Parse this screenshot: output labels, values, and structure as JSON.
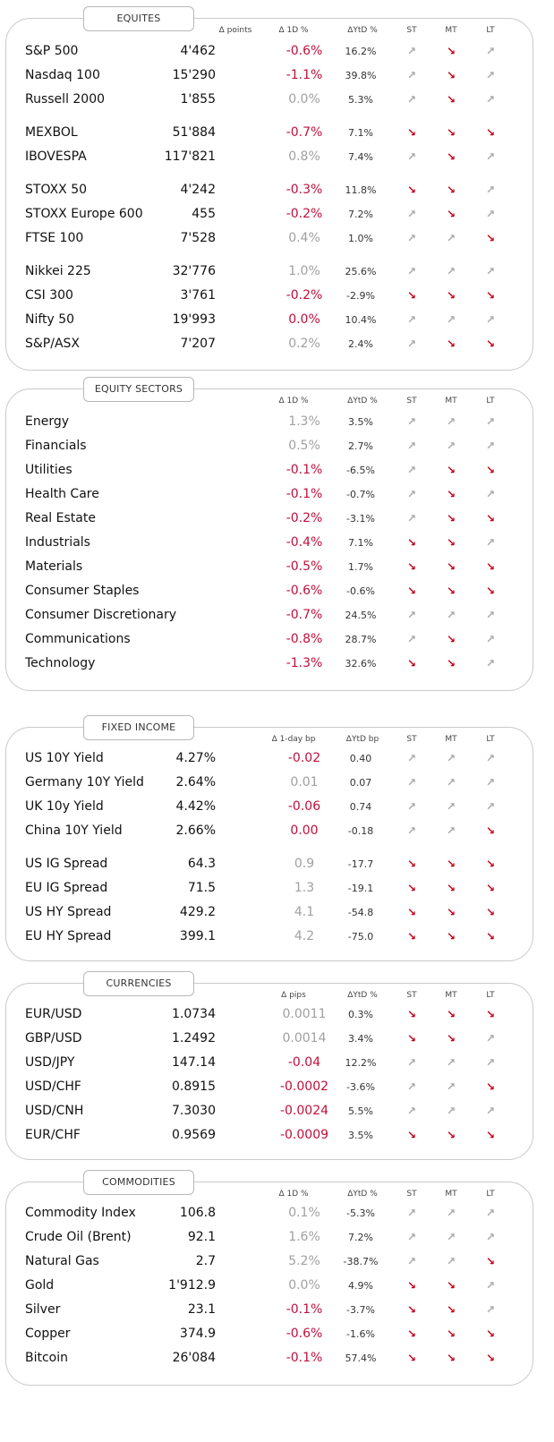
{
  "colors": {
    "negative": "#c0103a",
    "positive": "#a0a0a0",
    "arrow_up": "#a8a8a8",
    "arrow_down": "#c00018"
  },
  "icons": {
    "up": "↗",
    "down": "↘"
  },
  "sections": [
    {
      "id": "equities",
      "title": "EQUITES",
      "headers": {
        "chg": "Δ 1D %",
        "points": "Δ points",
        "ytd": "ΔYtD %",
        "st": "ST",
        "mt": "MT",
        "lt": "LT"
      },
      "rows": [
        {
          "name": "S&P 500",
          "level": "4'462",
          "chg": "-0.6%",
          "sign": "neg",
          "ytd": "16.2%",
          "st": "up",
          "mt": "down",
          "lt": "up"
        },
        {
          "name": "Nasdaq 100",
          "level": "15'290",
          "chg": "-1.1%",
          "sign": "neg",
          "ytd": "39.8%",
          "st": "up",
          "mt": "down",
          "lt": "up"
        },
        {
          "name": "Russell 2000",
          "level": "1'855",
          "chg": "0.0%",
          "sign": "pos",
          "ytd": "5.3%",
          "st": "up",
          "mt": "down",
          "lt": "up"
        },
        {
          "name": "MEXBOL",
          "level": "51'884",
          "chg": "-0.7%",
          "sign": "neg",
          "ytd": "7.1%",
          "st": "down",
          "mt": "down",
          "lt": "down"
        },
        {
          "name": "IBOVESPA",
          "level": "117'821",
          "chg": "0.8%",
          "sign": "pos",
          "ytd": "7.4%",
          "st": "up",
          "mt": "down",
          "lt": "up"
        },
        {
          "name": "STOXX 50",
          "level": "4'242",
          "chg": "-0.3%",
          "sign": "neg",
          "ytd": "11.8%",
          "st": "down",
          "mt": "down",
          "lt": "up"
        },
        {
          "name": "STOXX Europe 600",
          "level": "455",
          "chg": "-0.2%",
          "sign": "neg",
          "ytd": "7.2%",
          "st": "up",
          "mt": "down",
          "lt": "up"
        },
        {
          "name": "FTSE 100",
          "level": "7'528",
          "chg": "0.4%",
          "sign": "pos",
          "ytd": "1.0%",
          "st": "up",
          "mt": "up",
          "lt": "down"
        },
        {
          "name": "Nikkei 225",
          "level": "32'776",
          "chg": "1.0%",
          "sign": "pos",
          "ytd": "25.6%",
          "st": "up",
          "mt": "up",
          "lt": "up"
        },
        {
          "name": "CSI 300",
          "level": "3'761",
          "chg": "-0.2%",
          "sign": "neg",
          "ytd": "-2.9%",
          "st": "down",
          "mt": "down",
          "lt": "down"
        },
        {
          "name": "Nifty  50",
          "level": "19'993",
          "chg": "0.0%",
          "sign": "neg",
          "ytd": "10.4%",
          "st": "up",
          "mt": "up",
          "lt": "up"
        },
        {
          "name": "S&P/ASX",
          "level": "7'207",
          "chg": "0.2%",
          "sign": "pos",
          "ytd": "2.4%",
          "st": "up",
          "mt": "down",
          "lt": "down"
        }
      ]
    },
    {
      "id": "sectors",
      "title": "EQUITY  SECTORS",
      "headers": {
        "chg": "Δ 1D %",
        "ytd": "ΔYtD %",
        "st": "ST",
        "mt": "MT",
        "lt": "LT"
      },
      "rows": [
        {
          "name": "Energy",
          "chg": "1.3%",
          "sign": "pos",
          "ytd": "3.5%",
          "st": "up",
          "mt": "up",
          "lt": "up"
        },
        {
          "name": "Financials",
          "chg": "0.5%",
          "sign": "pos",
          "ytd": "2.7%",
          "st": "up",
          "mt": "up",
          "lt": "up"
        },
        {
          "name": "Utilities",
          "chg": "-0.1%",
          "sign": "neg",
          "ytd": "-6.5%",
          "st": "up",
          "mt": "down",
          "lt": "down"
        },
        {
          "name": "Health Care",
          "chg": "-0.1%",
          "sign": "neg",
          "ytd": "-0.7%",
          "st": "up",
          "mt": "down",
          "lt": "up"
        },
        {
          "name": "Real Estate",
          "chg": "-0.2%",
          "sign": "neg",
          "ytd": "-3.1%",
          "st": "up",
          "mt": "down",
          "lt": "down"
        },
        {
          "name": "Industrials",
          "chg": "-0.4%",
          "sign": "neg",
          "ytd": "7.1%",
          "st": "down",
          "mt": "down",
          "lt": "up"
        },
        {
          "name": "Materials",
          "chg": "-0.5%",
          "sign": "neg",
          "ytd": "1.7%",
          "st": "down",
          "mt": "down",
          "lt": "down"
        },
        {
          "name": "Consumer Staples",
          "chg": "-0.6%",
          "sign": "neg",
          "ytd": "-0.6%",
          "st": "down",
          "mt": "down",
          "lt": "down"
        },
        {
          "name": "Consumer Discretionary",
          "chg": "-0.7%",
          "sign": "neg",
          "ytd": "24.5%",
          "st": "up",
          "mt": "up",
          "lt": "up"
        },
        {
          "name": "Communications",
          "chg": "-0.8%",
          "sign": "neg",
          "ytd": "28.7%",
          "st": "up",
          "mt": "down",
          "lt": "up"
        },
        {
          "name": "Technology",
          "chg": "-1.3%",
          "sign": "neg",
          "ytd": "32.6%",
          "st": "down",
          "mt": "down",
          "lt": "up"
        }
      ]
    },
    {
      "id": "fixed",
      "title": "FIXED  INCOME",
      "headers": {
        "chg": "Δ 1-day bp",
        "ytd": "ΔYtD bp",
        "st": "ST",
        "mt": "MT",
        "lt": "LT"
      },
      "rows": [
        {
          "name": "US 10Y Yield",
          "level": "4.27%",
          "chg": "-0.02",
          "sign": "neg",
          "ytd": "0.40",
          "st": "up",
          "mt": "up",
          "lt": "up"
        },
        {
          "name": "Germany 10Y Yield",
          "level": "2.64%",
          "chg": "0.01",
          "sign": "pos",
          "ytd": "0.07",
          "st": "up",
          "mt": "up",
          "lt": "up"
        },
        {
          "name": "UK 10y Yield",
          "level": "4.42%",
          "chg": "-0.06",
          "sign": "neg",
          "ytd": "0.74",
          "st": "up",
          "mt": "up",
          "lt": "up"
        },
        {
          "name": "China 10Y Yield",
          "level": "2.66%",
          "chg": "0.00",
          "sign": "neg",
          "ytd": "-0.18",
          "st": "up",
          "mt": "up",
          "lt": "down"
        },
        {
          "name": "US IG Spread",
          "level": "64.3",
          "chg": "0.9",
          "sign": "pos",
          "ytd": "-17.7",
          "st": "down",
          "mt": "down",
          "lt": "down"
        },
        {
          "name": "EU IG Spread",
          "level": "71.5",
          "chg": "1.3",
          "sign": "pos",
          "ytd": "-19.1",
          "st": "down",
          "mt": "down",
          "lt": "down"
        },
        {
          "name": "US HY Spread",
          "level": "429.2",
          "chg": "4.1",
          "sign": "pos",
          "ytd": "-54.8",
          "st": "down",
          "mt": "down",
          "lt": "down"
        },
        {
          "name": "EU HY Spread",
          "level": "399.1",
          "chg": "4.2",
          "sign": "pos",
          "ytd": "-75.0",
          "st": "down",
          "mt": "down",
          "lt": "down"
        }
      ]
    },
    {
      "id": "fx",
      "title": "CURRENCIES",
      "headers": {
        "chg": "Δ pips",
        "ytd": "ΔYtD %",
        "st": "ST",
        "mt": "MT",
        "lt": "LT"
      },
      "rows": [
        {
          "name": "EUR/USD",
          "level": "1.0734",
          "chg": "0.0011",
          "sign": "pos",
          "ytd": "0.3%",
          "st": "down",
          "mt": "down",
          "lt": "down"
        },
        {
          "name": "GBP/USD",
          "level": "1.2492",
          "chg": "0.0014",
          "sign": "pos",
          "ytd": "3.4%",
          "st": "down",
          "mt": "down",
          "lt": "up"
        },
        {
          "name": "USD/JPY",
          "level": "147.14",
          "chg": "-0.04",
          "sign": "neg",
          "ytd": "12.2%",
          "st": "up",
          "mt": "up",
          "lt": "up"
        },
        {
          "name": "USD/CHF",
          "level": "0.8915",
          "chg": "-0.0002",
          "sign": "neg",
          "ytd": "-3.6%",
          "st": "up",
          "mt": "up",
          "lt": "down"
        },
        {
          "name": "USD/CNH",
          "level": "7.3030",
          "chg": "-0.0024",
          "sign": "neg",
          "ytd": "5.5%",
          "st": "up",
          "mt": "up",
          "lt": "up"
        },
        {
          "name": "EUR/CHF",
          "level": "0.9569",
          "chg": "-0.0009",
          "sign": "neg",
          "ytd": "3.5%",
          "st": "down",
          "mt": "down",
          "lt": "down"
        }
      ]
    },
    {
      "id": "commodities",
      "title": "COMMODITIES",
      "headers": {
        "chg": "Δ 1D %",
        "ytd": "ΔYtD %",
        "st": "ST",
        "mt": "MT",
        "lt": "LT"
      },
      "rows": [
        {
          "name": "Commodity Index",
          "level": "106.8",
          "chg": "0.1%",
          "sign": "pos",
          "ytd": "-5.3%",
          "st": "up",
          "mt": "up",
          "lt": "up"
        },
        {
          "name": "Crude Oil (Brent)",
          "level": "92.1",
          "chg": "1.6%",
          "sign": "pos",
          "ytd": "7.2%",
          "st": "up",
          "mt": "up",
          "lt": "up"
        },
        {
          "name": "Natural Gas",
          "level": "2.7",
          "chg": "5.2%",
          "sign": "pos",
          "ytd": "-38.7%",
          "st": "up",
          "mt": "up",
          "lt": "down"
        },
        {
          "name": "Gold",
          "level": "1'912.9",
          "chg": "0.0%",
          "sign": "pos",
          "ytd": "4.9%",
          "st": "down",
          "mt": "down",
          "lt": "up"
        },
        {
          "name": "Silver",
          "level": "23.1",
          "chg": "-0.1%",
          "sign": "neg",
          "ytd": "-3.7%",
          "st": "down",
          "mt": "down",
          "lt": "up"
        },
        {
          "name": "Copper",
          "level": "374.9",
          "chg": "-0.6%",
          "sign": "neg",
          "ytd": "-1.6%",
          "st": "down",
          "mt": "down",
          "lt": "down"
        },
        {
          "name": "Bitcoin",
          "level": "26'084",
          "chg": "-0.1%",
          "sign": "neg",
          "ytd": "57.4%",
          "st": "down",
          "mt": "down",
          "lt": "down"
        }
      ]
    }
  ]
}
